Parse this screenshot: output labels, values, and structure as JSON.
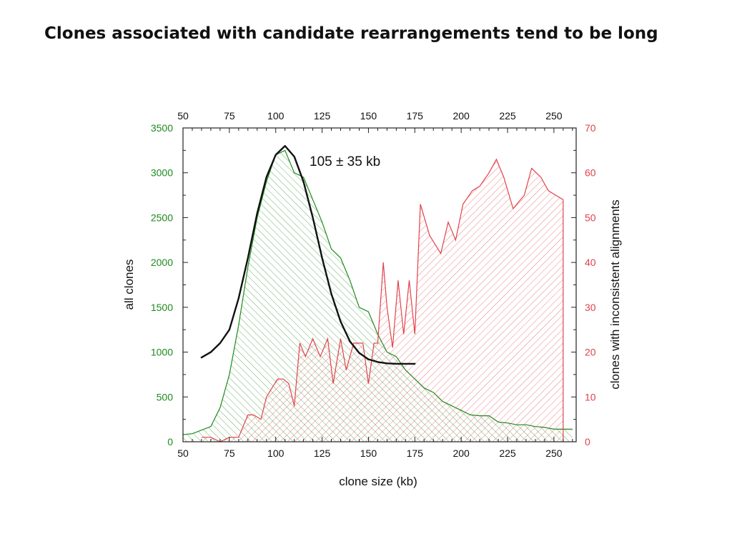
{
  "slide": {
    "title": "Clones associated with candidate rearrangements tend to be long"
  },
  "colors": {
    "all_clones": "#1e8a1e",
    "inconsistent": "#e0434a",
    "fit_curve": "#111111"
  },
  "chart_data": {
    "type": "area",
    "xlabel": "clone size (kb)",
    "ylabel_left": "all clones",
    "ylabel_right": "clones with inconsistent alignments",
    "xlim": [
      50,
      262
    ],
    "ylim_left": [
      0,
      3500
    ],
    "ylim_right": [
      0,
      70
    ],
    "x_ticks": [
      "50",
      "75",
      "100",
      "125",
      "150",
      "175",
      "200",
      "225",
      "250"
    ],
    "y_ticks_left": [
      "0",
      "500",
      "1000",
      "1500",
      "2000",
      "2500",
      "3000",
      "3500"
    ],
    "y_ticks_right": [
      "0",
      "10",
      "20",
      "30",
      "40",
      "50",
      "60",
      "70"
    ],
    "annotation": "105 ± 35 kb",
    "series": [
      {
        "axis": "left",
        "style": "hatched-area",
        "color": "#1e8a1e",
        "x": [
          50,
          55,
          60,
          65,
          70,
          75,
          80,
          85,
          90,
          95,
          100,
          105,
          110,
          115,
          120,
          125,
          130,
          135,
          140,
          145,
          150,
          155,
          160,
          165,
          170,
          175,
          180,
          185,
          190,
          195,
          200,
          205,
          210,
          215,
          220,
          225,
          230,
          235,
          240,
          245,
          250,
          255,
          260
        ],
        "values": [
          80,
          90,
          130,
          170,
          380,
          750,
          1300,
          1950,
          2500,
          2900,
          3200,
          3250,
          3000,
          2950,
          2700,
          2450,
          2150,
          2050,
          1800,
          1500,
          1450,
          1200,
          1000,
          950,
          800,
          700,
          600,
          550,
          450,
          400,
          350,
          300,
          290,
          290,
          220,
          210,
          190,
          190,
          170,
          160,
          140,
          140,
          140
        ]
      },
      {
        "axis": "right",
        "style": "hatched-area",
        "color": "#e0434a",
        "x": [
          60,
          65,
          70,
          75,
          80,
          85,
          88,
          92,
          95,
          98,
          101,
          104,
          107,
          110,
          113,
          116,
          120,
          124,
          128,
          131,
          135,
          138,
          142,
          147,
          150,
          153,
          155,
          158,
          160,
          163,
          166,
          169,
          172,
          175,
          178,
          183,
          189,
          193,
          197,
          201,
          206,
          210,
          215,
          219,
          223,
          228,
          234,
          238,
          243,
          247,
          251,
          255
        ],
        "values": [
          1,
          1,
          0,
          1,
          1,
          6,
          6,
          5,
          10,
          12,
          14,
          14,
          13,
          8,
          22,
          19,
          23,
          19,
          23,
          13,
          23,
          16,
          22,
          22,
          13,
          22,
          22,
          40,
          30,
          21,
          36,
          24,
          36,
          24,
          53,
          46,
          42,
          49,
          45,
          53,
          56,
          57,
          60,
          63,
          59,
          52,
          55,
          61,
          59,
          56,
          55,
          54
        ]
      },
      {
        "axis": "left",
        "style": "line",
        "color": "#111111",
        "x": [
          60,
          65,
          70,
          75,
          80,
          85,
          90,
          95,
          100,
          105,
          110,
          115,
          120,
          125,
          130,
          135,
          140,
          145,
          150,
          155,
          160,
          165,
          170,
          175
        ],
        "values": [
          940,
          1000,
          1100,
          1250,
          1600,
          2050,
          2550,
          2950,
          3200,
          3300,
          3180,
          2900,
          2500,
          2050,
          1650,
          1340,
          1120,
          990,
          920,
          890,
          875,
          870,
          870,
          870
        ]
      }
    ]
  }
}
